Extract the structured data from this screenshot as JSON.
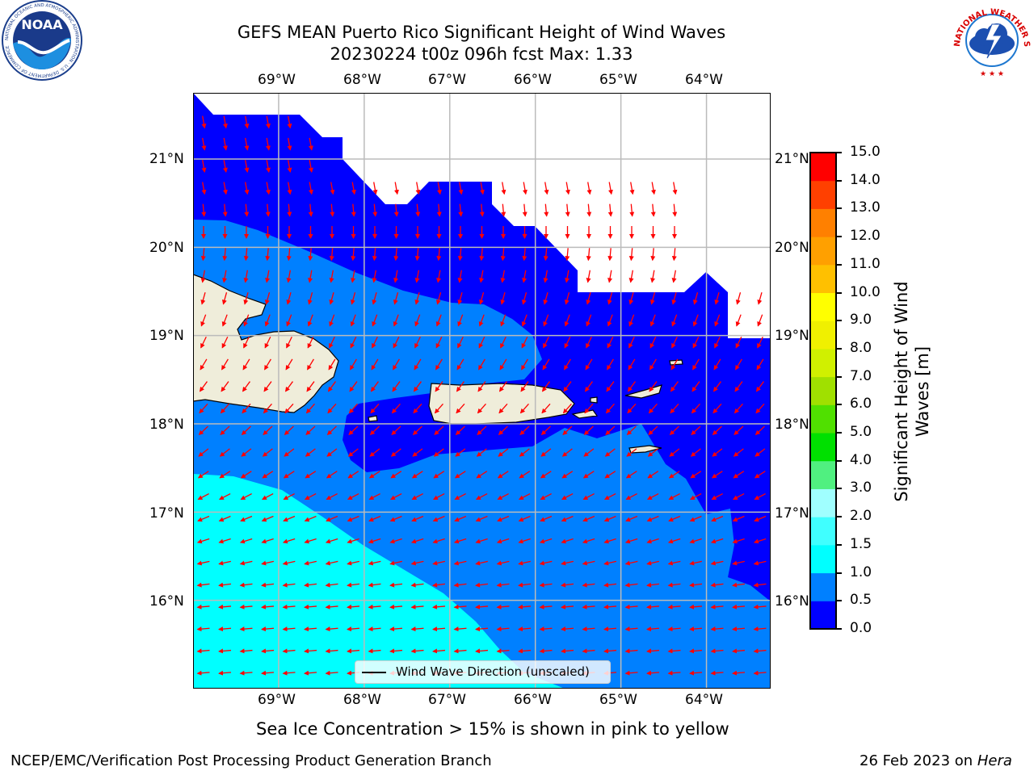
{
  "header": {
    "title_line1": "GEFS MEAN Puerto Rico Significant Height of Wind Waves",
    "title_line2": "20230224 t00z 096h fcst   Max: 1.33"
  },
  "logos": {
    "noaa_text": "NOAA",
    "noaa_ring_text": "NATIONAL OCEANIC AND ATMOSPHERIC ADMINISTRATION · U.S. DEPARTMENT OF COMMERCE",
    "nws_ring_text": "NATIONAL WEATHER SERVICE"
  },
  "map": {
    "lon_ticks": [
      "69°W",
      "68°W",
      "67°W",
      "66°W",
      "65°W",
      "64°W"
    ],
    "lat_ticks": [
      "21°N",
      "20°N",
      "19°N",
      "18°N",
      "17°N",
      "16°N"
    ],
    "lon_range": [
      -70.0,
      -63.25
    ],
    "lat_range": [
      15.0,
      21.75
    ],
    "wave_direction_note": "winds from east-northeast",
    "colors": {
      "land": "#efedda",
      "missing": "#ffffff",
      "arrow": "#ff0000"
    }
  },
  "legend": {
    "label": "Wind Wave Direction (unscaled)"
  },
  "colorbar": {
    "label": "Significant Height of Wind Waves [m]",
    "ticks": [
      "0.0",
      "0.5",
      "1.0",
      "1.5",
      "2.0",
      "3.0",
      "4.0",
      "5.0",
      "6.0",
      "7.0",
      "8.0",
      "9.0",
      "10.0",
      "11.0",
      "12.0",
      "13.0",
      "14.0",
      "15.0"
    ],
    "bins": [
      {
        "min": 0.0,
        "max": 0.5,
        "color": "#0000ff"
      },
      {
        "min": 0.5,
        "max": 1.0,
        "color": "#0080ff"
      },
      {
        "min": 1.0,
        "max": 1.5,
        "color": "#00ffff"
      },
      {
        "min": 1.5,
        "max": 2.0,
        "color": "#40ffff"
      },
      {
        "min": 2.0,
        "max": 3.0,
        "color": "#a0ffff"
      },
      {
        "min": 3.0,
        "max": 4.0,
        "color": "#50f080"
      },
      {
        "min": 4.0,
        "max": 5.0,
        "color": "#00e000"
      },
      {
        "min": 5.0,
        "max": 6.0,
        "color": "#50e000"
      },
      {
        "min": 6.0,
        "max": 7.0,
        "color": "#a0e000"
      },
      {
        "min": 7.0,
        "max": 8.0,
        "color": "#d0f000"
      },
      {
        "min": 8.0,
        "max": 9.0,
        "color": "#f0f000"
      },
      {
        "min": 9.0,
        "max": 10.0,
        "color": "#ffff00"
      },
      {
        "min": 10.0,
        "max": 11.0,
        "color": "#ffc000"
      },
      {
        "min": 11.0,
        "max": 12.0,
        "color": "#ffa000"
      },
      {
        "min": 12.0,
        "max": 13.0,
        "color": "#ff8000"
      },
      {
        "min": 13.0,
        "max": 14.0,
        "color": "#ff4000"
      },
      {
        "min": 14.0,
        "max": 15.0,
        "color": "#ff0000"
      }
    ]
  },
  "caption": "Sea Ice Concentration > 15% is shown in pink to yellow",
  "footer": {
    "left": "NCEP/EMC/Verification Post Processing Product Generation Branch",
    "right_prefix": "26 Feb 2023 on ",
    "right_host": "Hera"
  }
}
